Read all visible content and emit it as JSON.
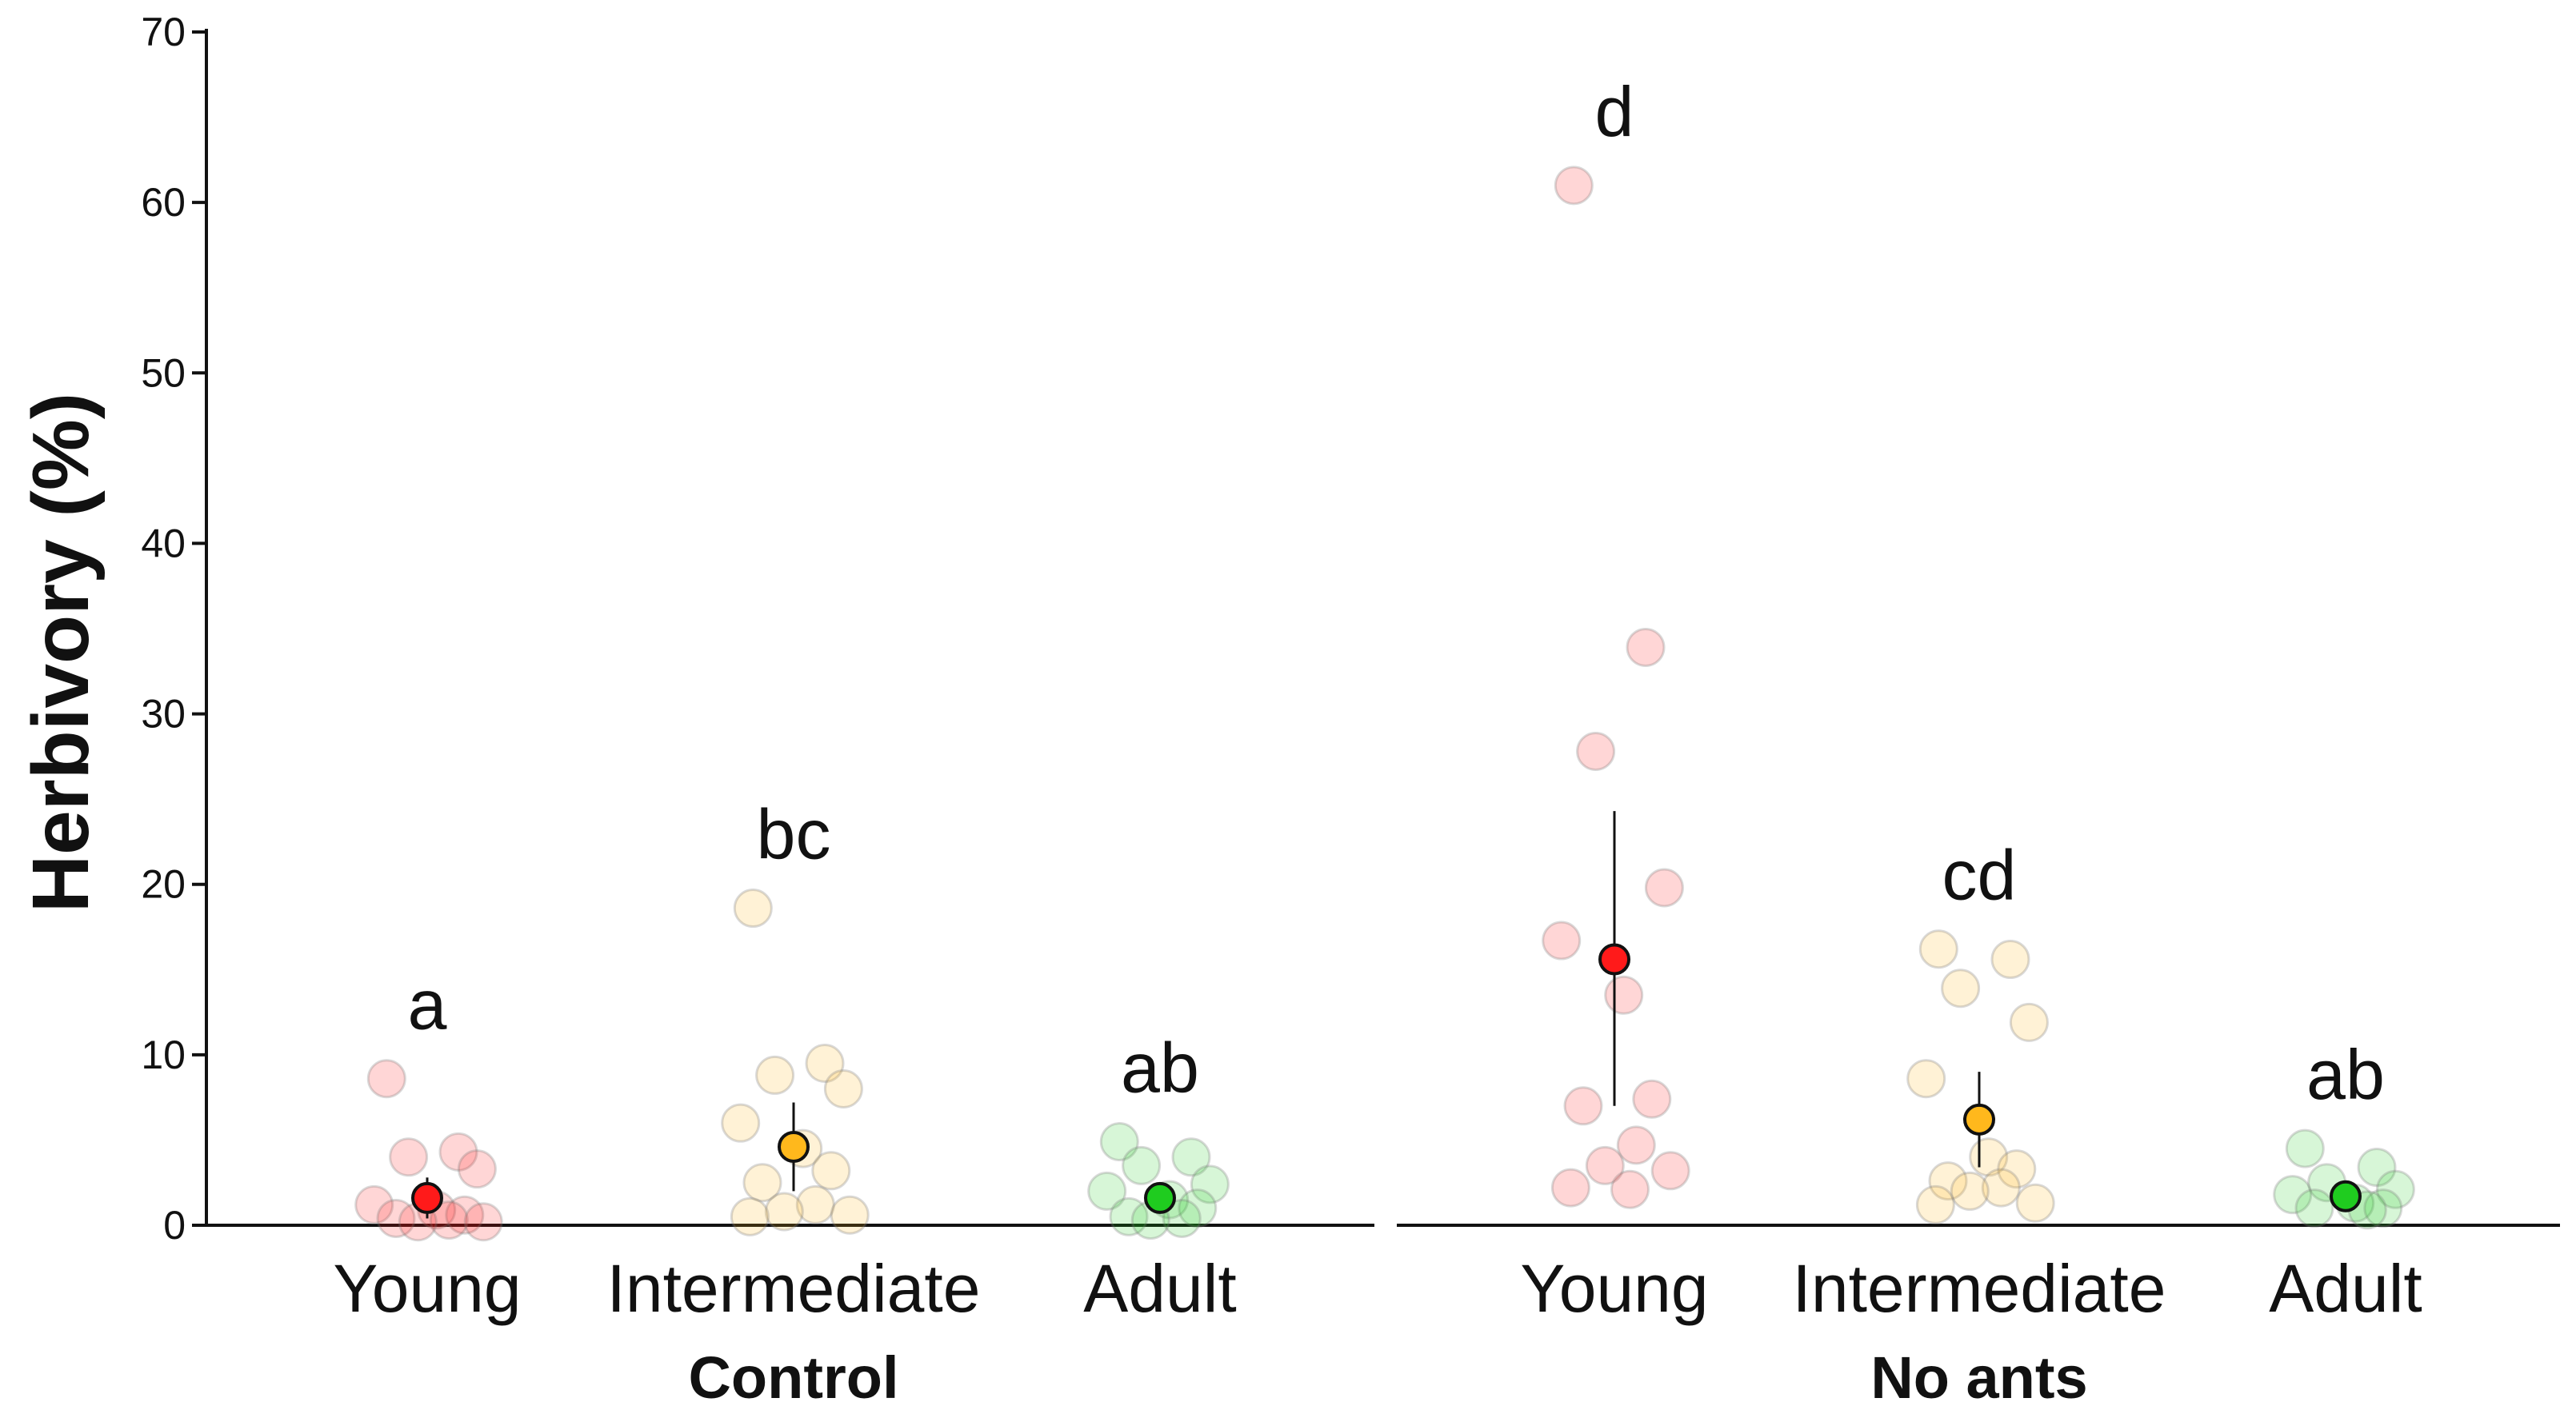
{
  "chart_data": {
    "type": "scatter",
    "title": "",
    "ylabel": "Herbivory (%)",
    "xlabel": "",
    "ylim": [
      0,
      70
    ],
    "yticks": [
      0,
      10,
      20,
      30,
      40,
      50,
      60,
      70
    ],
    "grid": false,
    "stages": [
      "Young",
      "Intermediate",
      "Adult"
    ],
    "colors": {
      "Young": "#ff1a1a",
      "Intermediate": "#ffb81c",
      "Adult": "#1fcc1f"
    },
    "groups": [
      {
        "name": "Control",
        "categories": [
          {
            "stage": "Young",
            "mean": 1.6,
            "ci": [
              0.4,
              2.8
            ],
            "letter": "a",
            "points": [
              8.6,
              4.3,
              4.0,
              3.3,
              1.2,
              0.9,
              0.6,
              0.4,
              0.3,
              0.2,
              0.2
            ]
          },
          {
            "stage": "Intermediate",
            "mean": 4.6,
            "ci": [
              2.0,
              7.2
            ],
            "letter": "bc",
            "points": [
              18.6,
              9.5,
              8.8,
              8.0,
              6.0,
              4.5,
              3.2,
              2.5,
              1.2,
              0.8,
              0.6,
              0.5
            ]
          },
          {
            "stage": "Adult",
            "mean": 1.6,
            "ci": [
              1.0,
              2.3
            ],
            "letter": "ab",
            "points": [
              4.9,
              4.0,
              3.5,
              2.4,
              2.0,
              1.5,
              1.0,
              0.5,
              0.4,
              0.3
            ]
          }
        ]
      },
      {
        "name": "No ants",
        "categories": [
          {
            "stage": "Young",
            "mean": 15.6,
            "ci": [
              7.0,
              24.3
            ],
            "letter": "d",
            "points": [
              61.0,
              33.9,
              27.8,
              19.8,
              16.7,
              13.5,
              7.4,
              7.0,
              4.7,
              3.5,
              3.2,
              2.2,
              2.1
            ]
          },
          {
            "stage": "Intermediate",
            "mean": 6.2,
            "ci": [
              3.4,
              9.0
            ],
            "letter": "cd",
            "points": [
              16.2,
              15.6,
              13.9,
              11.9,
              8.6,
              4.0,
              3.3,
              2.6,
              2.2,
              2.0,
              1.3,
              1.2
            ]
          },
          {
            "stage": "Adult",
            "mean": 1.7,
            "ci": [
              1.2,
              2.3
            ],
            "letter": "ab",
            "points": [
              4.5,
              3.4,
              2.5,
              2.1,
              1.8,
              1.3,
              1.0,
              1.0,
              0.9
            ]
          }
        ]
      }
    ]
  }
}
